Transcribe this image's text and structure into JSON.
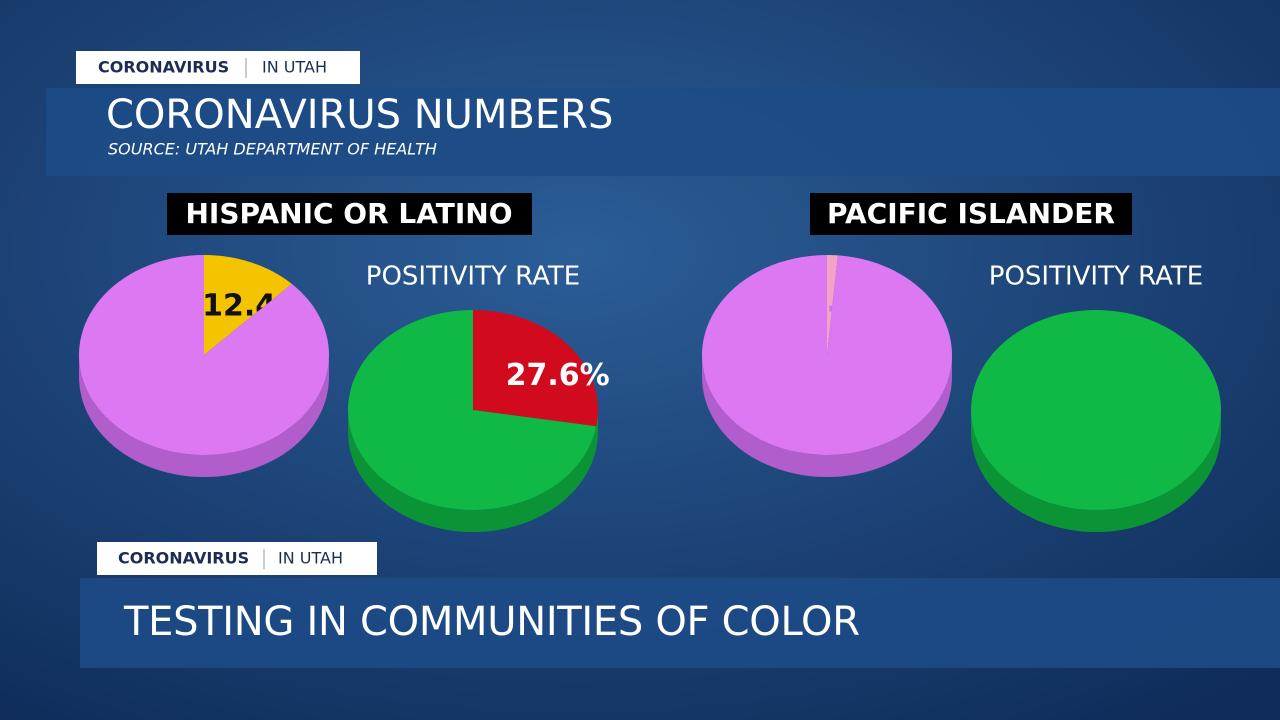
{
  "header": {
    "tag": "CORONAVIRUS",
    "tag_place": "IN UTAH",
    "title": "CORONAVIRUS NUMBERS",
    "source": "SOURCE: UTAH DEPARTMENT OF HEALTH"
  },
  "groups": [
    "HISPANIC OR LATINO",
    "PACIFIC ISLANDER"
  ],
  "chart_data": [
    {
      "type": "pie",
      "values": [
        12.4,
        87.6
      ],
      "value_labels": [
        "12.4%",
        null
      ],
      "colors": [
        "#f5c400",
        "#dc78f2"
      ],
      "side_color": "#b25dcc",
      "label_color": "#111111"
    },
    {
      "type": "pie",
      "title": "POSITIVITY RATE",
      "values": [
        27.6,
        72.4
      ],
      "value_labels": [
        "27.6%",
        null
      ],
      "colors": [
        "#d10a1e",
        "#10b845"
      ],
      "side_color": "#0a9436",
      "label_color": "#ffffff"
    },
    {
      "type": "pie",
      "values": [
        1.4,
        98.6
      ],
      "value_labels": [
        "1.4%",
        null
      ],
      "colors": [
        "#f4a3c6",
        "#dc78f2"
      ],
      "side_color": "#b25dcc",
      "label_color": "#c078dc"
    },
    {
      "type": "pie",
      "title": "POSITIVITY RATE",
      "values": [
        100
      ],
      "colors": [
        "#10b845"
      ],
      "side_color": "#0a9436"
    }
  ],
  "lower_third": {
    "tag": "CORONAVIRUS",
    "tag_place": "IN UTAH",
    "headline": "TESTING IN COMMUNITIES OF COLOR"
  }
}
